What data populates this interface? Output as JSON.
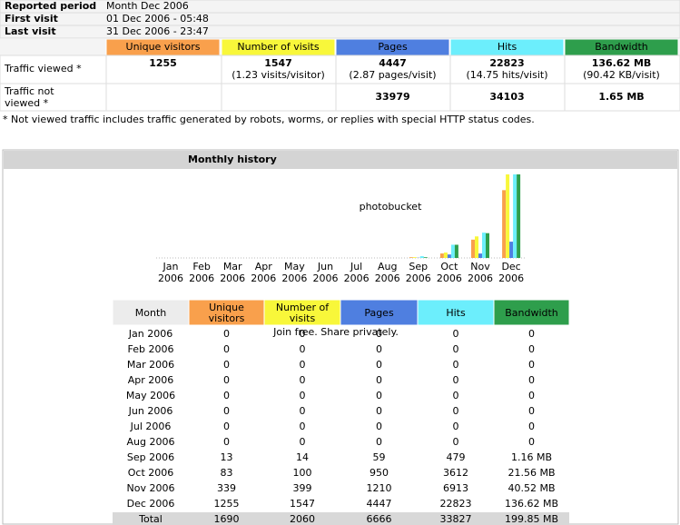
{
  "summary": {
    "info": [
      {
        "label": "Reported period",
        "value": "Month Dec 2006"
      },
      {
        "label": "First visit",
        "value": "01 Dec 2006 - 05:48"
      },
      {
        "label": "Last visit",
        "value": "31 Dec 2006 - 23:47"
      }
    ],
    "columns": [
      "Unique visitors",
      "Number of visits",
      "Pages",
      "Hits",
      "Bandwidth"
    ],
    "viewed": {
      "label": "Traffic viewed *",
      "cells": [
        [
          1255
        ],
        [
          1547,
          "(1.23 visits/visitor)"
        ],
        [
          4447,
          "(2.87 pages/visit)"
        ],
        [
          22823,
          "(14.75 hits/visit)"
        ],
        [
          "136.62 MB",
          "(90.42 KB/visit)"
        ]
      ]
    },
    "not_viewed": {
      "label": [
        "Traffic not",
        "viewed *"
      ],
      "cells": [
        33979,
        34103,
        "1.65 MB"
      ]
    }
  },
  "note": "* Not viewed traffic includes traffic generated by robots, worms, or replies with special HTTP status codes.",
  "history": {
    "title": "Monthly history",
    "chart_labels": [
      [
        "Jan",
        "2006"
      ],
      [
        "Feb",
        "2006"
      ],
      [
        "Mar",
        "2006"
      ],
      [
        "Apr",
        "2006"
      ],
      [
        "May",
        "2006"
      ],
      [
        "Jun",
        "2006"
      ],
      [
        "Jul",
        "2006"
      ],
      [
        "Aug",
        "2006"
      ],
      [
        "Sep",
        "2006"
      ],
      [
        "Oct",
        "2006"
      ],
      [
        "Nov",
        "2006"
      ],
      [
        "Dec",
        "2006"
      ]
    ],
    "header": [
      "Month",
      [
        "Unique",
        "visitors"
      ],
      [
        "Number of",
        "visits"
      ],
      "Pages",
      "Hits",
      "Bandwidth"
    ],
    "rows": [
      [
        "Jan 2006",
        0,
        0,
        0,
        0,
        0
      ],
      [
        "Feb 2006",
        0,
        0,
        0,
        0,
        0
      ],
      [
        "Mar 2006",
        0,
        0,
        0,
        0,
        0
      ],
      [
        "Apr 2006",
        0,
        0,
        0,
        0,
        0
      ],
      [
        "May 2006",
        0,
        0,
        0,
        0,
        0
      ],
      [
        "Jun 2006",
        0,
        0,
        0,
        0,
        0
      ],
      [
        "Jul 2006",
        0,
        0,
        0,
        0,
        0
      ],
      [
        "Aug 2006",
        0,
        0,
        0,
        0,
        0
      ],
      [
        "Sep 2006",
        13,
        14,
        59,
        479,
        {
          "value": 1.16,
          "label": "1.16 MB"
        }
      ],
      [
        "Oct 2006",
        83,
        100,
        950,
        3612,
        {
          "value": 21.56,
          "label": "21.56 MB"
        }
      ],
      [
        "Nov 2006",
        339,
        399,
        1210,
        6913,
        {
          "value": 40.52,
          "label": "40.52 MB"
        }
      ],
      [
        "Dec 2006",
        1255,
        1547,
        4447,
        22823,
        {
          "value": 136.62,
          "label": "136.62 MB"
        }
      ]
    ],
    "total": [
      "Total",
      1690,
      2060,
      6666,
      33827,
      {
        "value": 199.85,
        "label": "199.85 MB"
      }
    ]
  },
  "watermark": [
    "photobucket",
    "Join free. Share privately."
  ]
}
